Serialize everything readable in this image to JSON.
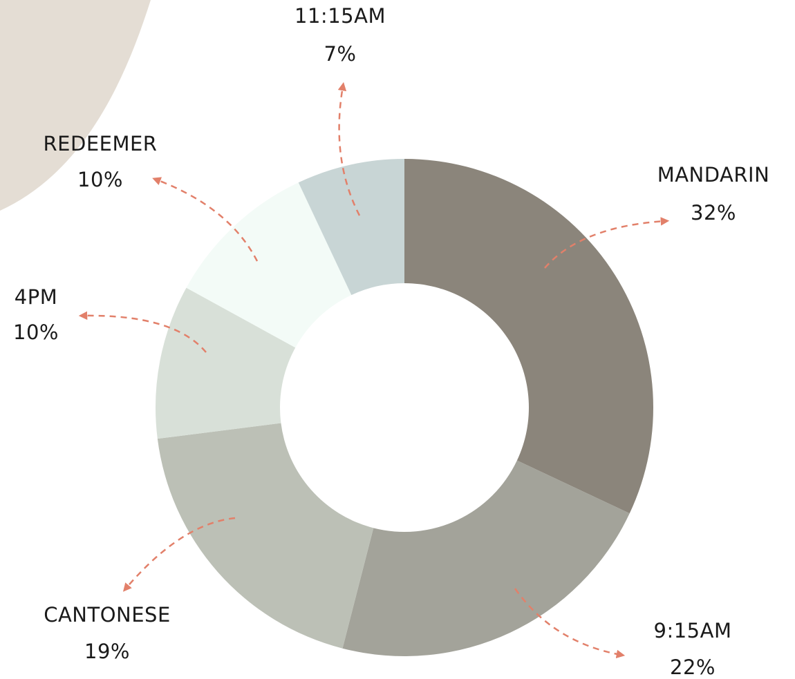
{
  "chart_data": {
    "type": "donut",
    "categories": [
      "MANDARIN",
      "9:15AM",
      "CANTONESE",
      "4PM",
      "REDEEMER",
      "11:15AM"
    ],
    "values": [
      32,
      22,
      19,
      10,
      10,
      7
    ],
    "value_labels": [
      "32%",
      "22%",
      "19%",
      "10%",
      "10%",
      "7%"
    ],
    "colors": [
      "#8b857b",
      "#a3a39a",
      "#bcc0b6",
      "#d8e0d8",
      "#f3fbf7",
      "#c8d5d5"
    ]
  }
}
